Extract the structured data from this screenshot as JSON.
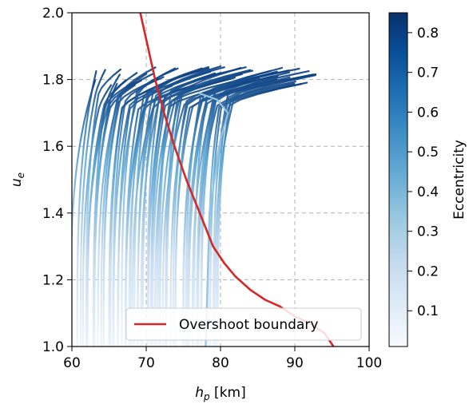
{
  "chart_data": {
    "type": "line",
    "xlabel_base": "h",
    "xlabel_sub": "p",
    "xlabel_unit": " [km]",
    "ylabel_base": "u",
    "ylabel_sub": "e",
    "xlim": [
      60,
      100
    ],
    "ylim": [
      1.0,
      2.0
    ],
    "xticks": [
      60,
      70,
      80,
      90,
      100
    ],
    "yticks": [
      1.0,
      1.2,
      1.4,
      1.6,
      1.8,
      2.0
    ],
    "grid": true,
    "colormap": "Blues",
    "colorbar": {
      "label": "Eccentricity",
      "range": [
        0.01,
        0.85
      ],
      "ticks": [
        0.1,
        0.2,
        0.3,
        0.4,
        0.5,
        0.6,
        0.7,
        0.8
      ]
    },
    "legend": {
      "placement": "bottom-right",
      "entries": [
        "Overshoot boundary"
      ]
    },
    "boundary": {
      "name": "Overshoot boundary",
      "color": "#d62728",
      "x": [
        69.2,
        70.2,
        71.2,
        72.4,
        73.8,
        75.4,
        77.2,
        79.0,
        80.5,
        82.0,
        84.0,
        86.0,
        88.0,
        90.0,
        92.0,
        94.0,
        95.2
      ],
      "y": [
        2.0,
        1.9,
        1.8,
        1.7,
        1.6,
        1.5,
        1.4,
        1.3,
        1.25,
        1.21,
        1.17,
        1.14,
        1.12,
        1.09,
        1.07,
        1.04,
        1.0
      ]
    },
    "trajectory_family": {
      "count": 70,
      "x_start_range": [
        60.4,
        79.5
      ],
      "x_end_range": [
        62.5,
        92.8
      ],
      "y_end_range": [
        1.78,
        1.84
      ],
      "note_curl_x": 81.0
    }
  }
}
